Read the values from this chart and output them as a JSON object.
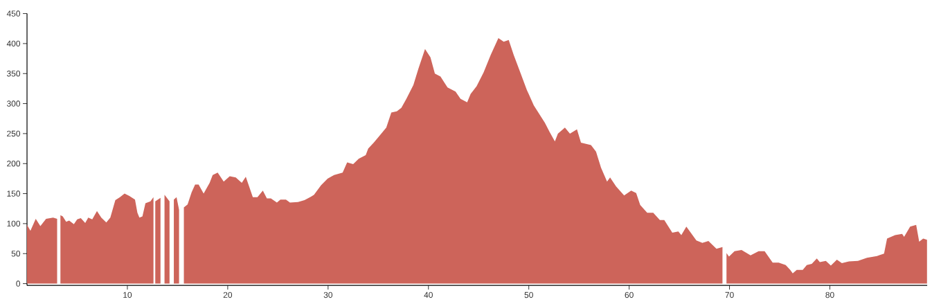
{
  "chart_data": {
    "type": "area",
    "color": "#cd645a",
    "x": [
      0,
      0.34,
      0.87,
      1.33,
      1.9,
      2.6,
      3.0,
      3.17,
      3.33,
      3.56,
      3.9,
      4.2,
      4.67,
      5.0,
      5.36,
      5.8,
      6.1,
      6.5,
      6.97,
      7.4,
      7.9,
      8.3,
      8.8,
      9.26,
      9.72,
      10.2,
      10.76,
      11.0,
      11.2,
      11.5,
      11.8,
      12.3,
      12.6,
      12.69,
      12.78,
      13.3,
      13.5,
      13.7,
      14.2,
      14.4,
      14.63,
      14.9,
      15.15,
      15.4,
      15.63,
      16.0,
      16.4,
      16.75,
      17.1,
      17.6,
      18.2,
      18.5,
      19.0,
      19.6,
      20.2,
      20.8,
      21.4,
      21.8,
      22.15,
      22.5,
      22.96,
      23.5,
      23.9,
      24.3,
      24.9,
      25.25,
      25.8,
      26.2,
      27.0,
      27.65,
      28.3,
      28.6,
      29.3,
      29.95,
      30.6,
      31.45,
      31.9,
      32.5,
      33.05,
      33.75,
      34.0,
      34.55,
      35.1,
      35.8,
      36.3,
      36.85,
      37.3,
      37.8,
      38.5,
      39.0,
      39.66,
      40.2,
      40.64,
      41.2,
      41.9,
      42.7,
      43.2,
      43.86,
      44.2,
      44.8,
      45.5,
      46.2,
      46.97,
      47.5,
      48.0,
      48.5,
      49.15,
      49.8,
      50.5,
      51.6,
      52.1,
      52.6,
      52.9,
      53.6,
      54.1,
      54.8,
      55.2,
      56.2,
      56.7,
      57.2,
      57.8,
      58.1,
      58.7,
      59.5,
      60.2,
      60.7,
      61.1,
      61.8,
      62.4,
      63.06,
      63.5,
      64.3,
      64.9,
      65.2,
      65.7,
      66.7,
      67.3,
      67.9,
      68.7,
      69.3,
      69.5,
      69.7,
      69.95,
      70.5,
      71.2,
      72.1,
      72.9,
      73.5,
      74.3,
      74.9,
      75.6,
      76.05,
      76.3,
      76.7,
      77.3,
      77.7,
      78.2,
      78.7,
      79.0,
      79.6,
      80.1,
      80.7,
      81.2,
      81.9,
      82.8,
      83.7,
      84.7,
      85.4,
      85.7,
      86.5,
      87.2,
      87.4,
      88.0,
      88.6,
      88.9,
      89.3,
      89.68
    ],
    "values": [
      98,
      88,
      108,
      96,
      108,
      110,
      108,
      null,
      114,
      112,
      103,
      105,
      99,
      107,
      109,
      101,
      110,
      107,
      121,
      110,
      102,
      110,
      139,
      144,
      150,
      146,
      140,
      118,
      110,
      112,
      134,
      137,
      144,
      null,
      137,
      143,
      null,
      148,
      137,
      null,
      140,
      144,
      123,
      null,
      127,
      132,
      152,
      165,
      165,
      150,
      168,
      181,
      185,
      170,
      179,
      177,
      168,
      178,
      161,
      144,
      144,
      155,
      142,
      142,
      135,
      140,
      140,
      135,
      136,
      139,
      145,
      148,
      164,
      175,
      181,
      185,
      202,
      199,
      208,
      214,
      225,
      235,
      246,
      260,
      285,
      287,
      293,
      308,
      331,
      358,
      391,
      377,
      350,
      345,
      327,
      320,
      308,
      302,
      316,
      329,
      352,
      381,
      409,
      403,
      406,
      381,
      352,
      323,
      297,
      268,
      252,
      237,
      250,
      260,
      250,
      257,
      235,
      231,
      220,
      193,
      170,
      177,
      162,
      147,
      155,
      151,
      131,
      118,
      118,
      106,
      106,
      85,
      87,
      81,
      95,
      72,
      68,
      71,
      58,
      61,
      null,
      51,
      45,
      54,
      56,
      47,
      54,
      54,
      35,
      35,
      31,
      23,
      17,
      23,
      23,
      31,
      33,
      42,
      36,
      38,
      30,
      40,
      34,
      37,
      38,
      43,
      46,
      50,
      75,
      81,
      83,
      78,
      95,
      98,
      70,
      75,
      73
    ],
    "xlim": [
      0,
      89.7
    ],
    "ylim": [
      -3,
      450
    ],
    "xticks": [
      10,
      20,
      30,
      40,
      50,
      60,
      70,
      80
    ],
    "yticks": [
      0,
      50,
      100,
      150,
      200,
      250,
      300,
      350,
      400,
      450
    ]
  }
}
